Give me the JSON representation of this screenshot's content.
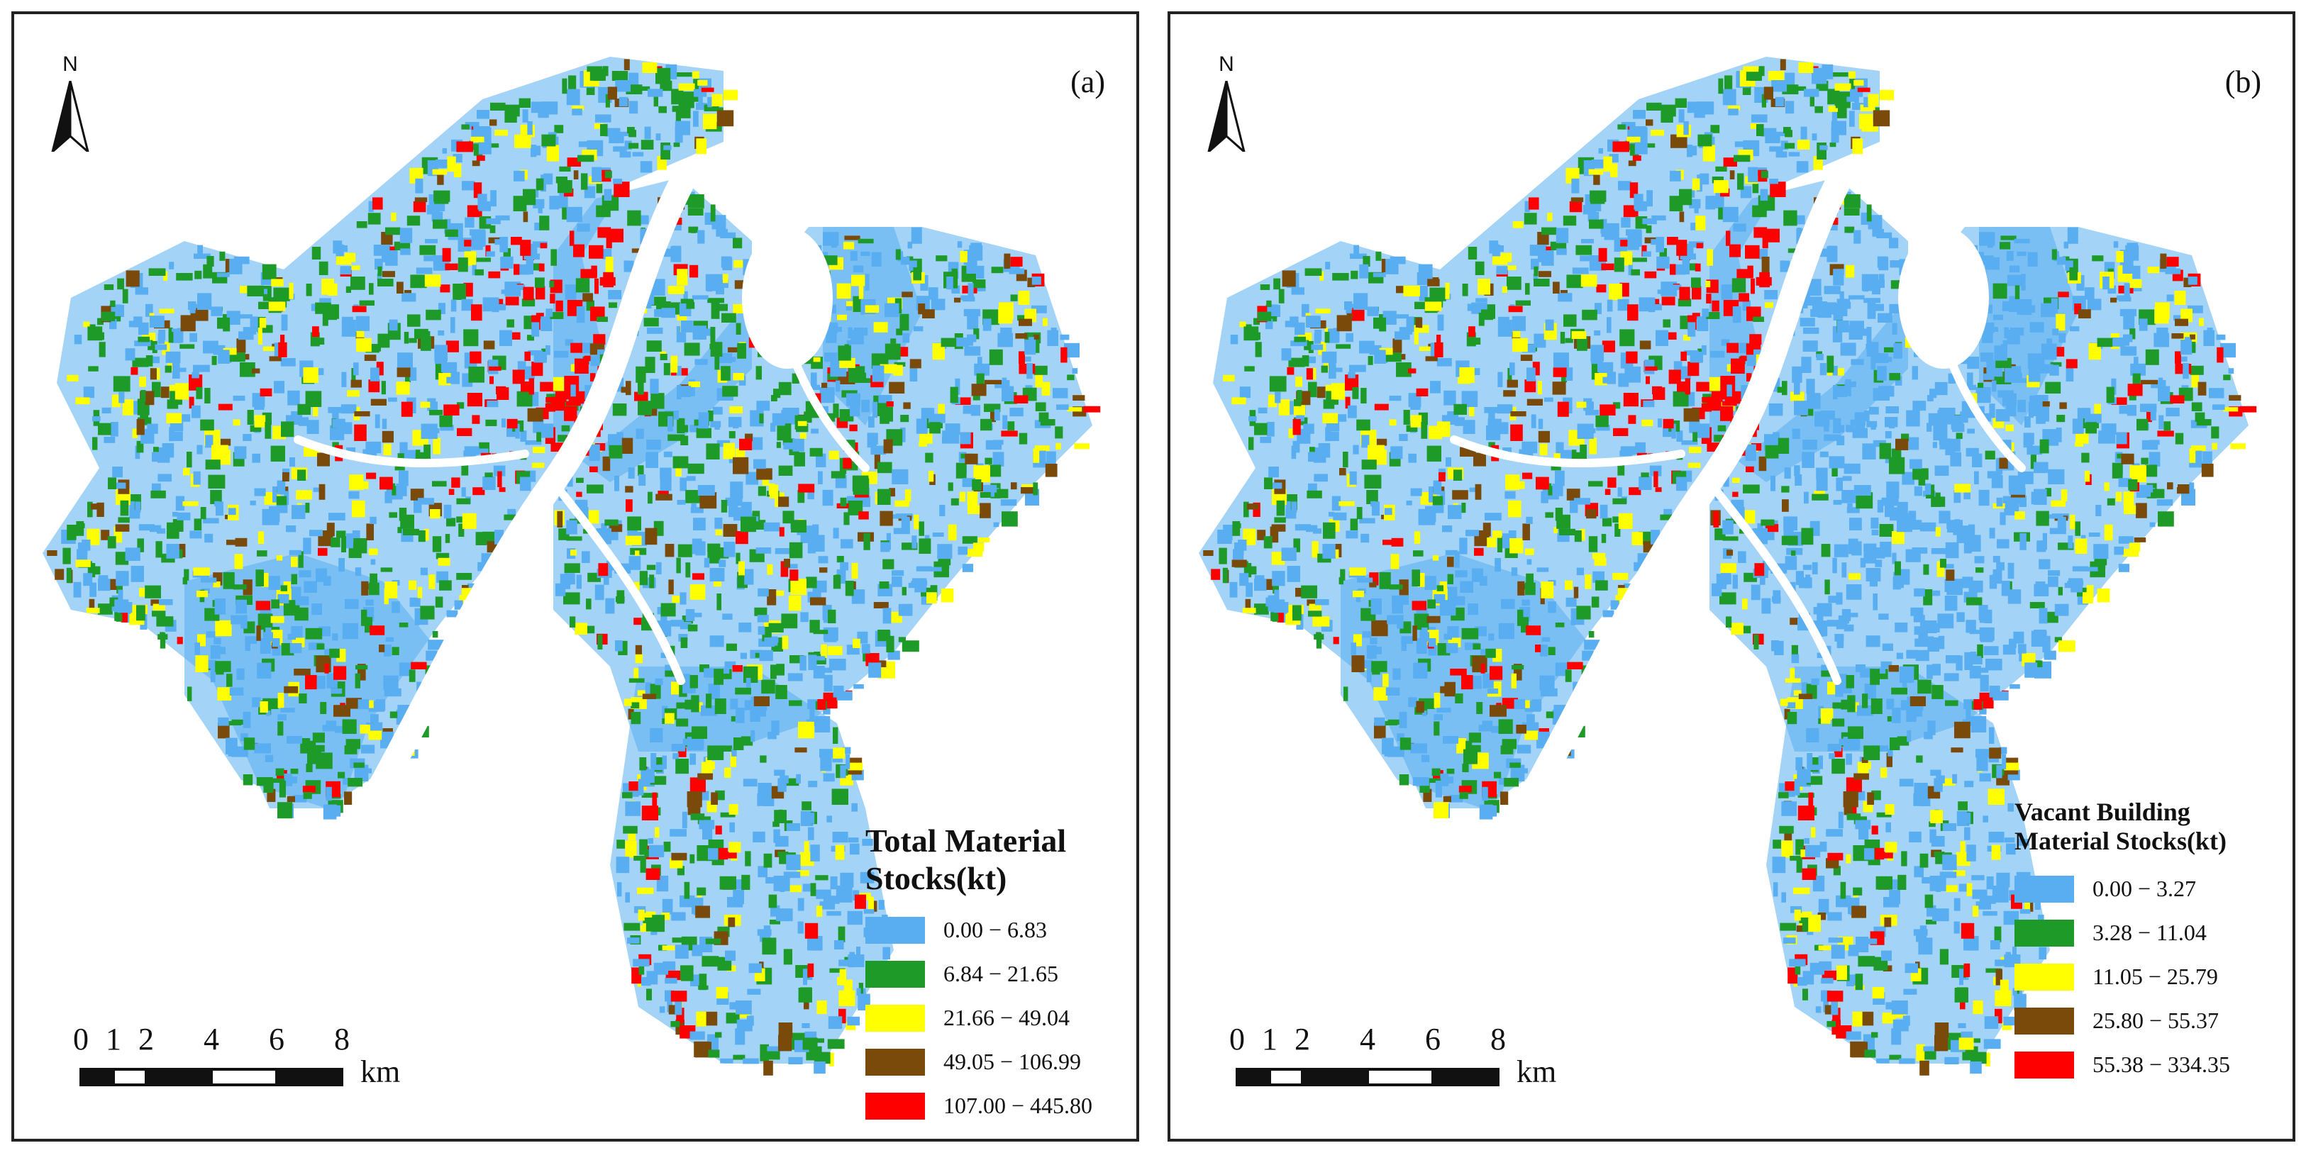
{
  "panels": [
    {
      "label": "(a)",
      "legend_title": "Total Material Stocks(kt)",
      "legend_title_lines": [
        "Total Material",
        "Stocks(kt)"
      ],
      "classes": [
        {
          "label": "0.00 − 6.83",
          "color": "#58aef0"
        },
        {
          "label": "6.84 − 21.65",
          "color": "#1e9a28"
        },
        {
          "label": "21.66 − 49.04",
          "color": "#ffff00"
        },
        {
          "label": "49.05 − 106.99",
          "color": "#7a4a0a"
        },
        {
          "label": "107.00 − 445.80",
          "color": "#ff0000"
        }
      ],
      "dominant_class": "blue-green-mix"
    },
    {
      "label": "(b)",
      "legend_title": "Vacant Building Material Stocks(kt)",
      "legend_title_lines": [
        "Vacant Building",
        "Material Stocks(kt)"
      ],
      "classes": [
        {
          "label": "0.00 − 3.27",
          "color": "#58aef0"
        },
        {
          "label": "3.28 − 11.04",
          "color": "#1e9a28"
        },
        {
          "label": "11.05 − 25.79",
          "color": "#ffff00"
        },
        {
          "label": "25.80 − 55.37",
          "color": "#7a4a0a"
        },
        {
          "label": "55.38 − 334.35",
          "color": "#ff0000"
        }
      ],
      "dominant_class": "blue"
    }
  ],
  "north_arrow": {
    "letter": "N",
    "icon": "north-arrow-icon"
  },
  "scale_bar": {
    "ticks": [
      "0",
      "1",
      "2",
      "4",
      "6",
      "8"
    ],
    "tick_km": [
      0,
      1,
      2,
      4,
      6,
      8
    ],
    "unit": "km"
  }
}
